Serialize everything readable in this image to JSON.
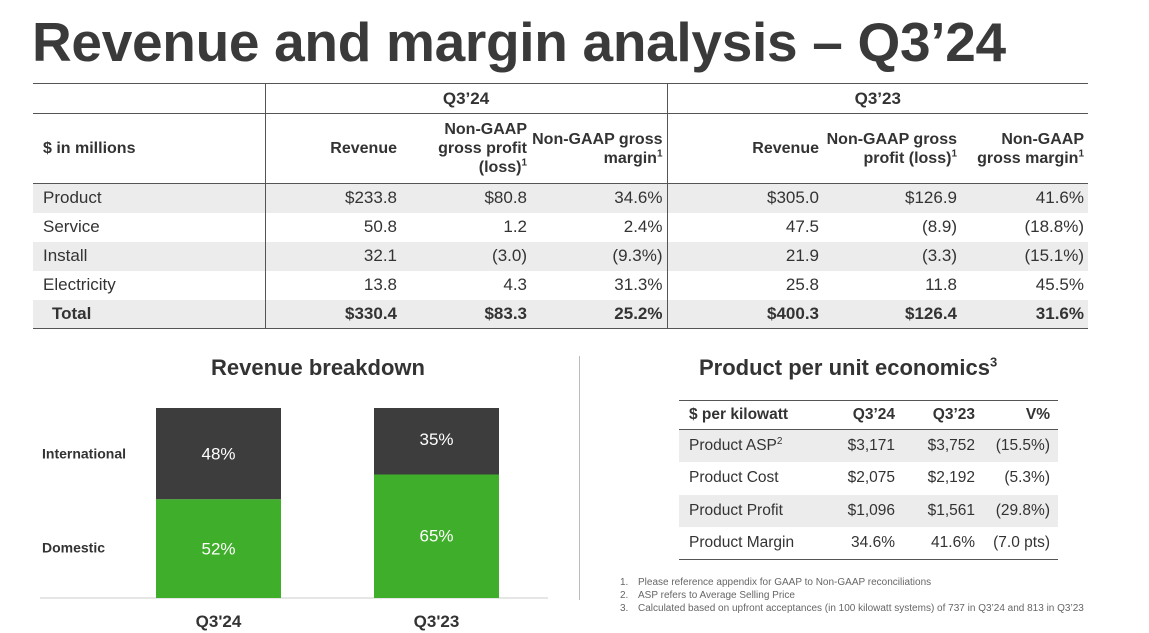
{
  "title": "Revenue and margin analysis – Q3’24",
  "main_table": {
    "period_headers": [
      "Q3’24",
      "Q3’23"
    ],
    "row_label_header": "$ in millions",
    "column_headers": [
      {
        "text": "Revenue",
        "sup": ""
      },
      {
        "text": "Non-GAAP gross profit (loss)",
        "sup": "1"
      },
      {
        "text": "Non-GAAP gross margin",
        "sup": "1"
      },
      {
        "text": "Revenue",
        "sup": ""
      },
      {
        "text": "Non-GAAP gross profit (loss)",
        "sup": "1"
      },
      {
        "text": "Non-GAAP gross margin",
        "sup": "1"
      }
    ],
    "rows": [
      {
        "label": "Product",
        "values": [
          "$233.8",
          "$80.8",
          "34.6%",
          "$305.0",
          "$126.9",
          "41.6%"
        ]
      },
      {
        "label": "Service",
        "values": [
          "50.8",
          "1.2",
          "2.4%",
          "47.5",
          "(8.9)",
          "(18.8%)"
        ]
      },
      {
        "label": "Install",
        "values": [
          "32.1",
          "(3.0)",
          "(9.3%)",
          "21.9",
          "(3.3)",
          "(15.1%)"
        ]
      },
      {
        "label": "Electricity",
        "values": [
          "13.8",
          "4.3",
          "31.3%",
          "25.8",
          "11.8",
          "45.5%"
        ]
      },
      {
        "label": "Total",
        "values": [
          "$330.4",
          "$83.3",
          "25.2%",
          "$400.3",
          "$126.4",
          "31.6%"
        ]
      }
    ]
  },
  "revenue_breakdown": {
    "title": "Revenue breakdown",
    "colors": {
      "international": "#3d3d3d",
      "domestic": "#3fae2a"
    }
  },
  "chart_data": {
    "type": "bar",
    "stacked": true,
    "title": "Revenue breakdown",
    "categories": [
      "Q3'24",
      "Q3'23"
    ],
    "series": [
      {
        "name": "Domestic",
        "values": [
          52,
          65
        ],
        "labels": [
          "52%",
          "65%"
        ]
      },
      {
        "name": "International",
        "values": [
          48,
          35
        ],
        "labels": [
          "48%",
          "35%"
        ]
      }
    ],
    "ylim": [
      0,
      100
    ]
  },
  "per_unit": {
    "title": "Product per unit economics",
    "title_sup": "3",
    "headers": [
      "$ per kilowatt",
      "Q3’24",
      "Q3’23",
      "V%"
    ],
    "rows": [
      {
        "label": "Product ASP",
        "sup": "2",
        "values": [
          "$3,171",
          "$3,752",
          "(15.5%)"
        ]
      },
      {
        "label": "Product Cost",
        "sup": "",
        "values": [
          "$2,075",
          "$2,192",
          "(5.3%)"
        ]
      },
      {
        "label": "Product Profit",
        "sup": "",
        "values": [
          "$1,096",
          "$1,561",
          "(29.8%)"
        ]
      },
      {
        "label": "Product Margin",
        "sup": "",
        "values": [
          "34.6%",
          "41.6%",
          "(7.0 pts)"
        ]
      }
    ]
  },
  "footnotes": [
    {
      "num": "1.",
      "text": "Please reference appendix for GAAP to Non-GAAP reconciliations"
    },
    {
      "num": "2.",
      "text": "ASP refers to Average Selling Price"
    },
    {
      "num": "3.",
      "text": "Calculated based on upfront acceptances (in 100 kilowatt systems) of 737 in Q3’24 and 813 in Q3’23"
    }
  ]
}
